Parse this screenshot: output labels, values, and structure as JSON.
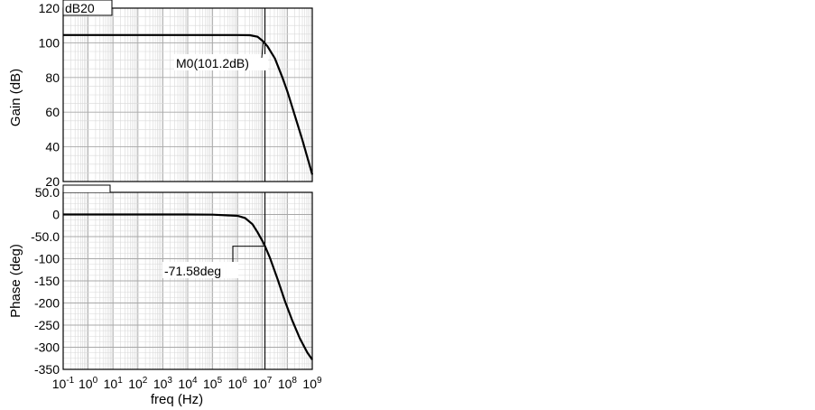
{
  "chart_data": [
    {
      "type": "line",
      "panel": "gain",
      "tag": "dB20",
      "ylabel": "Gain (dB)",
      "xscale": "log",
      "xlim_exp": [
        -1,
        9
      ],
      "ylim": [
        20,
        120
      ],
      "yticks": [
        "120",
        "100",
        "80",
        "60",
        "40",
        "20"
      ],
      "grid": true,
      "series": [
        {
          "x_exp": [
            -1,
            0,
            1,
            2,
            3,
            4,
            5,
            6,
            6.5,
            6.8,
            7.0,
            7.2,
            7.5,
            7.8,
            8.0,
            8.3,
            8.6,
            9.0
          ],
          "values": [
            104.5,
            104.5,
            104.5,
            104.5,
            104.5,
            104.5,
            104.5,
            104.5,
            104.4,
            103.5,
            101.2,
            98,
            91,
            80,
            72,
            58,
            44,
            24
          ]
        }
      ],
      "marker": {
        "label": "M0(101.2dB)",
        "x_exp": 7.1,
        "y": 101.2
      }
    },
    {
      "type": "line",
      "panel": "phase",
      "ylabel": "Phase (deg)",
      "xlabel": "freq (Hz)",
      "xscale": "log",
      "xlim_exp": [
        -1,
        9
      ],
      "ylim": [
        -350,
        50
      ],
      "yticks": [
        "50.0",
        "0",
        "-50.0",
        "-100",
        "-150",
        "-200",
        "-250",
        "-300",
        "-350"
      ],
      "xticks": [
        "10-1",
        "100",
        "101",
        "102",
        "103",
        "104",
        "105",
        "106",
        "107",
        "108",
        "109"
      ],
      "grid": true,
      "series": [
        {
          "x_exp": [
            -1,
            0,
            1,
            2,
            3,
            4,
            5,
            6,
            6.3,
            6.6,
            6.8,
            7.0,
            7.1,
            7.3,
            7.6,
            7.9,
            8.2,
            8.5,
            8.8,
            9.0
          ],
          "values": [
            0,
            0,
            0,
            0,
            0,
            0,
            -0.5,
            -3,
            -8,
            -22,
            -40,
            -60,
            -71.58,
            -98,
            -145,
            -195,
            -240,
            -280,
            -312,
            -328
          ]
        }
      ],
      "marker": {
        "label": "-71.58deg",
        "x_exp": 7.1,
        "y": -71.58
      }
    }
  ]
}
